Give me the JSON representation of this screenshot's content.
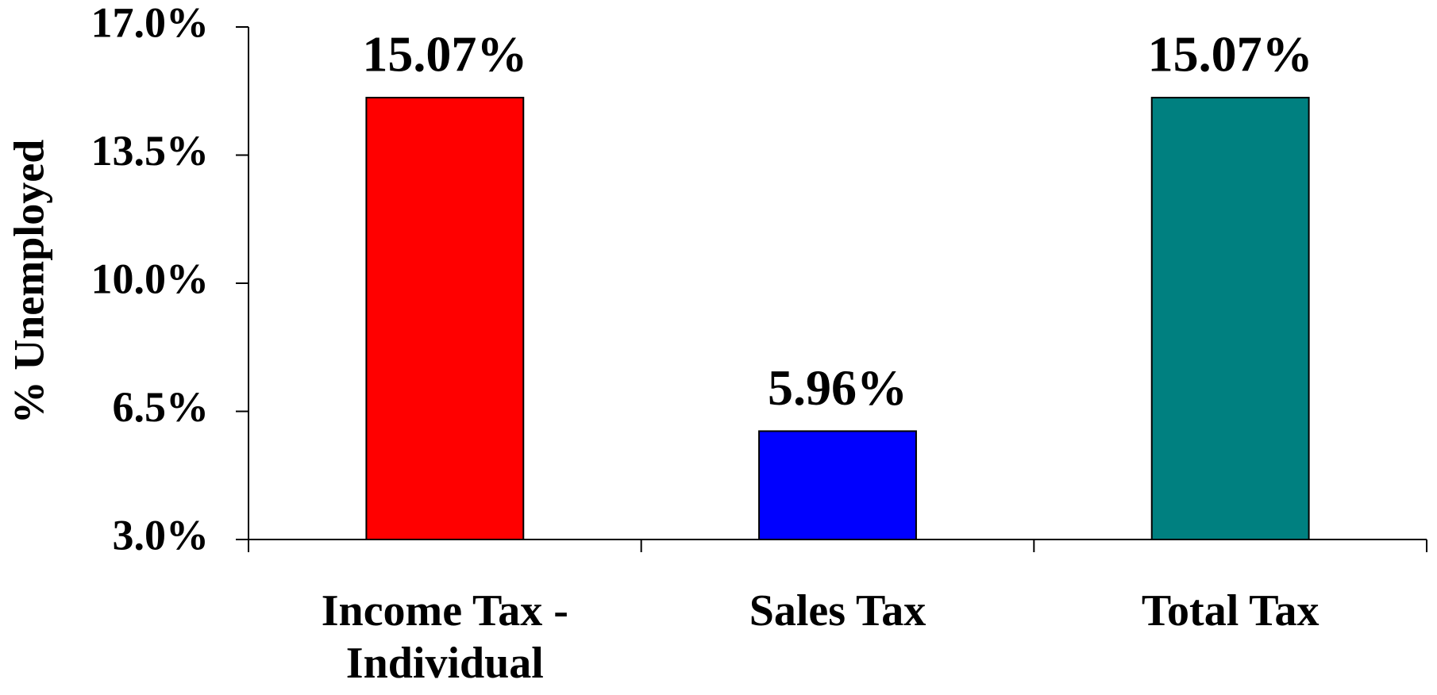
{
  "chart_data": {
    "type": "bar",
    "y_label": "% Unemployed",
    "categories": [
      "Income Tax - Individual",
      "Sales Tax",
      "Total Tax"
    ],
    "values": [
      15.07,
      5.96,
      15.07
    ],
    "value_labels": [
      "15.07%",
      "5.96%",
      "15.07%"
    ],
    "colors": [
      "#ff0000",
      "#0000ff",
      "#008080"
    ],
    "ylim": [
      3,
      17
    ],
    "yticks": [
      {
        "value": 3,
        "label": "3.0%"
      },
      {
        "value": 6.5,
        "label": "6.5%"
      },
      {
        "value": 10,
        "label": "10.0%"
      },
      {
        "value": 13.5,
        "label": "13.5%"
      },
      {
        "value": 17,
        "label": "17.0%"
      }
    ],
    "grid": false
  }
}
